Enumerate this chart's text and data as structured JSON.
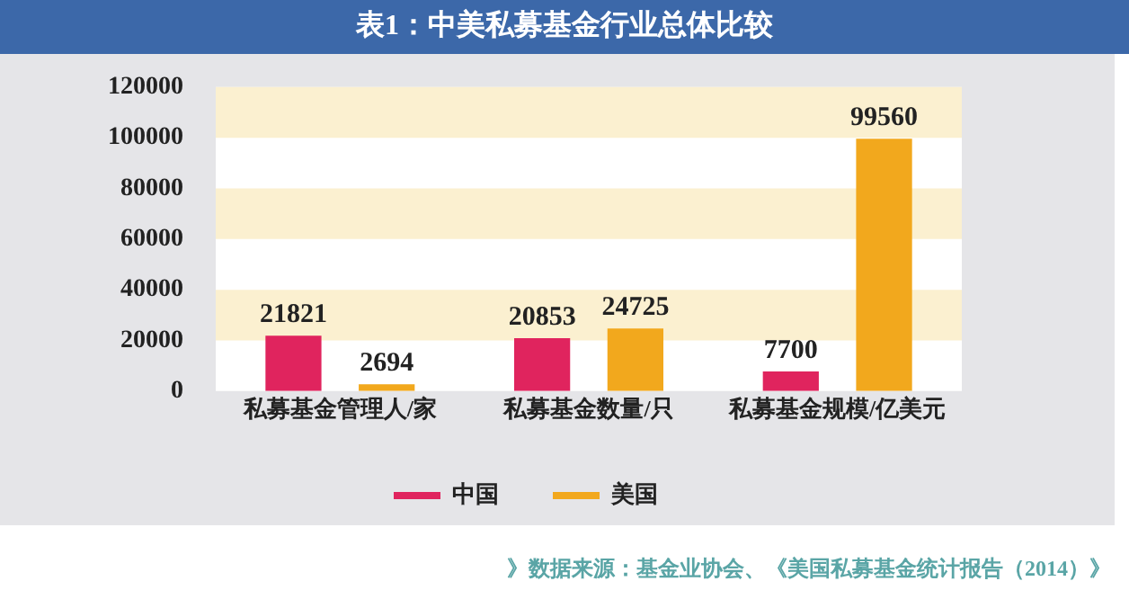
{
  "chart_data": {
    "type": "bar",
    "title": "表1：中美私募基金行业总体比较",
    "categories": [
      "私募基金管理人/家",
      "私募基金数量/只",
      "私募基金规模/亿美元"
    ],
    "series": [
      {
        "name": "中国",
        "color": "#e0245e",
        "values": [
          21821,
          20853,
          7700
        ]
      },
      {
        "name": "美国",
        "color": "#f2a81d",
        "values": [
          2694,
          24725,
          99560
        ]
      }
    ],
    "ylim": [
      0,
      120000
    ],
    "yticks": [
      0,
      20000,
      40000,
      60000,
      80000,
      100000,
      120000
    ],
    "bands": [
      {
        "axis": "y",
        "from": 20000,
        "to": 40000,
        "color": "#fbf0d0"
      },
      {
        "axis": "y",
        "from": 60000,
        "to": 80000,
        "color": "#fbf0d0"
      },
      {
        "axis": "y",
        "from": 100000,
        "to": 120000,
        "color": "#fbf0d0"
      }
    ],
    "legend": "bottom",
    "data_labels": true,
    "annotations": [
      "》数据来源：基金业协会、《美国私募基金统计报告（2014）》"
    ]
  }
}
